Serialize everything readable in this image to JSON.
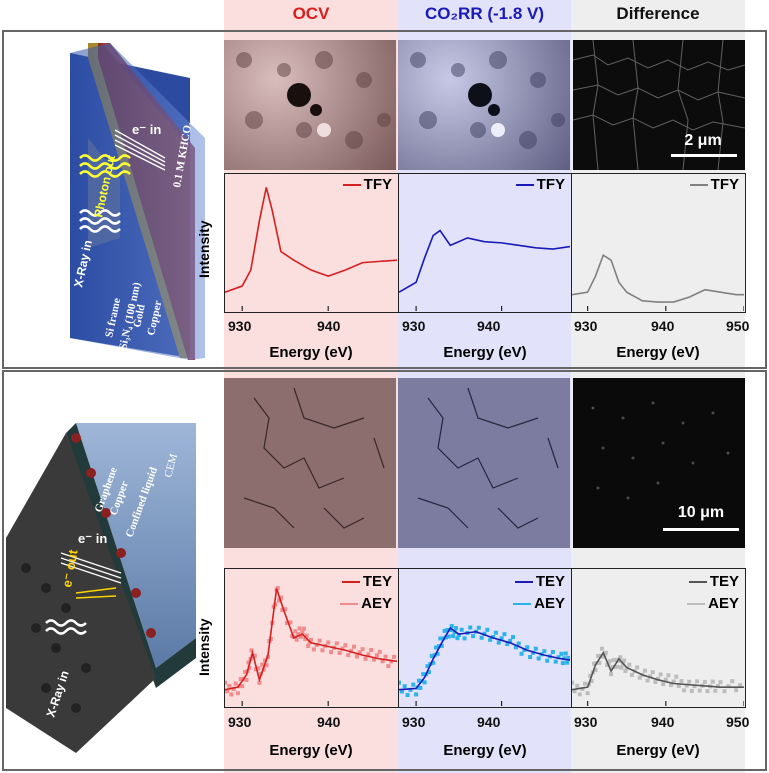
{
  "headers": {
    "col1": "OCV",
    "col2": "CO₂RR (-1.8 V)",
    "col3": "Difference"
  },
  "colors": {
    "ocv_bg": "#fbdede",
    "co2rr_bg": "#e2e2fb",
    "diff_bg": "#eeeeee",
    "ocv": "#d62020",
    "co2rr": "#1a1ab8",
    "diff": "#808080",
    "aey_ocv": "#f08c8c",
    "aey_co2rr": "#2cb3ea",
    "aey_diff": "#bdbdbd"
  },
  "top": {
    "schematic": {
      "kcl": "0.1 M KHCO₃",
      "e_in": "e⁻ in",
      "photon_out": "Photon out",
      "xray_in": "X-Ray in",
      "si_frame": "Si frame",
      "sin": "Si₃N₄ (100 nm)",
      "gold": "Gold",
      "copper": "Copper"
    },
    "scale": "2 μm",
    "ylabel": "Intensity",
    "xlabel": "Energy (eV)",
    "legend": "TFY"
  },
  "bottom": {
    "schematic": {
      "graphene": "Graphene",
      "copper": "Copper",
      "confined": "Confined liquid",
      "cem": "CEM",
      "e_in": "e⁻ in",
      "e_out": "e⁻ out",
      "xray_in": "X-Ray in"
    },
    "scale": "10 μm",
    "ylabel": "Intensity",
    "xlabel": "Energy (eV)",
    "legend1": "TEY",
    "legend2": "AEY"
  },
  "chart_data": [
    {
      "type": "line",
      "name": "OCV TFY",
      "xlim": [
        928,
        948
      ],
      "x": [
        928,
        930,
        931,
        932,
        932.8,
        933.5,
        934.5,
        936,
        938,
        940,
        942,
        944,
        946,
        948
      ],
      "y": [
        0.12,
        0.17,
        0.3,
        0.7,
        0.97,
        0.78,
        0.45,
        0.38,
        0.3,
        0.25,
        0.3,
        0.36,
        0.37,
        0.38
      ]
    },
    {
      "type": "line",
      "name": "CO2RR TFY",
      "xlim": [
        928,
        948
      ],
      "x": [
        928,
        930,
        931,
        932,
        932.8,
        934,
        936,
        938,
        940,
        942,
        944,
        946,
        948
      ],
      "y": [
        0.12,
        0.2,
        0.4,
        0.58,
        0.62,
        0.5,
        0.56,
        0.53,
        0.52,
        0.5,
        0.48,
        0.47,
        0.49
      ]
    },
    {
      "type": "line",
      "name": "Difference TFY",
      "xlim": [
        928,
        950
      ],
      "x": [
        928,
        930,
        931,
        932,
        933,
        934,
        935,
        937,
        939,
        941,
        943,
        945,
        947,
        949,
        950
      ],
      "y": [
        0.1,
        0.12,
        0.25,
        0.42,
        0.38,
        0.2,
        0.12,
        0.05,
        0.04,
        0.04,
        0.08,
        0.14,
        0.12,
        0.1,
        0.1
      ]
    },
    {
      "type": "line",
      "name": "OCV TEY",
      "xlim": [
        928,
        948
      ],
      "x": [
        928,
        929.5,
        930.5,
        931.2,
        932,
        933,
        934,
        934.8,
        936,
        937,
        938,
        940,
        942,
        944,
        946,
        948
      ],
      "y": [
        0.1,
        0.12,
        0.22,
        0.4,
        0.18,
        0.38,
        0.92,
        0.75,
        0.52,
        0.55,
        0.48,
        0.45,
        0.42,
        0.38,
        0.35,
        0.33
      ]
    },
    {
      "type": "line",
      "name": "CO2RR TEY",
      "xlim": [
        928,
        948
      ],
      "x": [
        928,
        930,
        931,
        932,
        933,
        934,
        935,
        937,
        939,
        941,
        943,
        945,
        947,
        948
      ],
      "y": [
        0.1,
        0.11,
        0.2,
        0.35,
        0.48,
        0.6,
        0.55,
        0.57,
        0.52,
        0.48,
        0.42,
        0.38,
        0.35,
        0.34
      ]
    },
    {
      "type": "line",
      "name": "Difference TEY",
      "xlim": [
        928,
        950
      ],
      "x": [
        928,
        930,
        931,
        932,
        933,
        934,
        935,
        937,
        939,
        941,
        943,
        945,
        947,
        950
      ],
      "y": [
        0.1,
        0.12,
        0.3,
        0.4,
        0.25,
        0.35,
        0.28,
        0.22,
        0.18,
        0.15,
        0.14,
        0.13,
        0.12,
        0.12
      ]
    }
  ],
  "ticks": {
    "left": "930",
    "mid": "940",
    "right950": "950"
  }
}
